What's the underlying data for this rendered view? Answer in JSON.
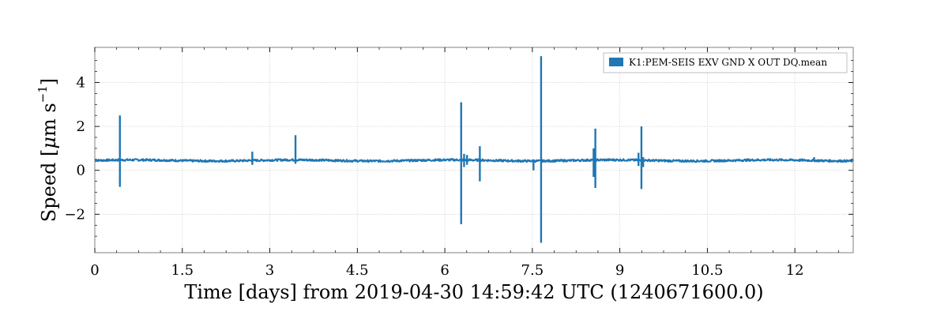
{
  "chart_data": {
    "type": "line",
    "title": "",
    "xlabel": "Time [days] from 2019-04-30 14:59:42 UTC (1240671600.0)",
    "ylabel": "Speed [μm s⁻¹]",
    "ylabel_parts": {
      "prefix": "Speed [",
      "mu": "μ",
      "unit": "m s",
      "sup": "−1",
      "suffix": "]"
    },
    "xlim": [
      0,
      13.0
    ],
    "ylim": [
      -3.75,
      5.6
    ],
    "grid": true,
    "legend_placement": "top-right",
    "x_ticks": [
      {
        "value": 0,
        "label": "0"
      },
      {
        "value": 1.5,
        "label": "1.5"
      },
      {
        "value": 3,
        "label": "3"
      },
      {
        "value": 4.5,
        "label": "4.5"
      },
      {
        "value": 6,
        "label": "6"
      },
      {
        "value": 7.5,
        "label": "7.5"
      },
      {
        "value": 9,
        "label": "9"
      },
      {
        "value": 10.5,
        "label": "10.5"
      },
      {
        "value": 12,
        "label": "12"
      }
    ],
    "x_minor_ticks": [
      0.375,
      0.75,
      1.125,
      1.875,
      2.25,
      2.625,
      3.375,
      3.75,
      4.125,
      4.875,
      5.25,
      5.625,
      6.375,
      6.75,
      7.125,
      7.875,
      8.25,
      8.625,
      9.375,
      9.75,
      10.125,
      10.875,
      11.25,
      11.625,
      12.375,
      12.75
    ],
    "y_ticks": [
      {
        "value": -2,
        "label": "−2"
      },
      {
        "value": 0,
        "label": "0"
      },
      {
        "value": 2,
        "label": "2"
      },
      {
        "value": 4,
        "label": "4"
      }
    ],
    "baseline": 0.45,
    "series": [
      {
        "name": "K1:PEM-SEIS EXV GND X OUT DQ.mean",
        "color": "#1f77b4",
        "spikes": [
          {
            "x": 0.43,
            "min": -0.75,
            "max": 2.5
          },
          {
            "x": 2.7,
            "min": 0.25,
            "max": 0.85
          },
          {
            "x": 3.44,
            "min": 0.3,
            "max": 1.6
          },
          {
            "x": 6.28,
            "min": -2.45,
            "max": 3.1
          },
          {
            "x": 6.33,
            "min": 0.15,
            "max": 0.75
          },
          {
            "x": 6.38,
            "min": 0.25,
            "max": 0.7
          },
          {
            "x": 6.6,
            "min": -0.5,
            "max": 1.1
          },
          {
            "x": 7.52,
            "min": 0.0,
            "max": 0.5
          },
          {
            "x": 7.65,
            "min": -3.3,
            "max": 5.2
          },
          {
            "x": 8.55,
            "min": -0.3,
            "max": 1.0
          },
          {
            "x": 8.58,
            "min": -0.8,
            "max": 1.9
          },
          {
            "x": 9.32,
            "min": 0.2,
            "max": 0.8
          },
          {
            "x": 9.37,
            "min": -0.85,
            "max": 2.0
          },
          {
            "x": 9.4,
            "min": 0.15,
            "max": 0.6
          },
          {
            "x": 12.33,
            "min": 0.4,
            "max": 0.6
          }
        ]
      }
    ]
  }
}
